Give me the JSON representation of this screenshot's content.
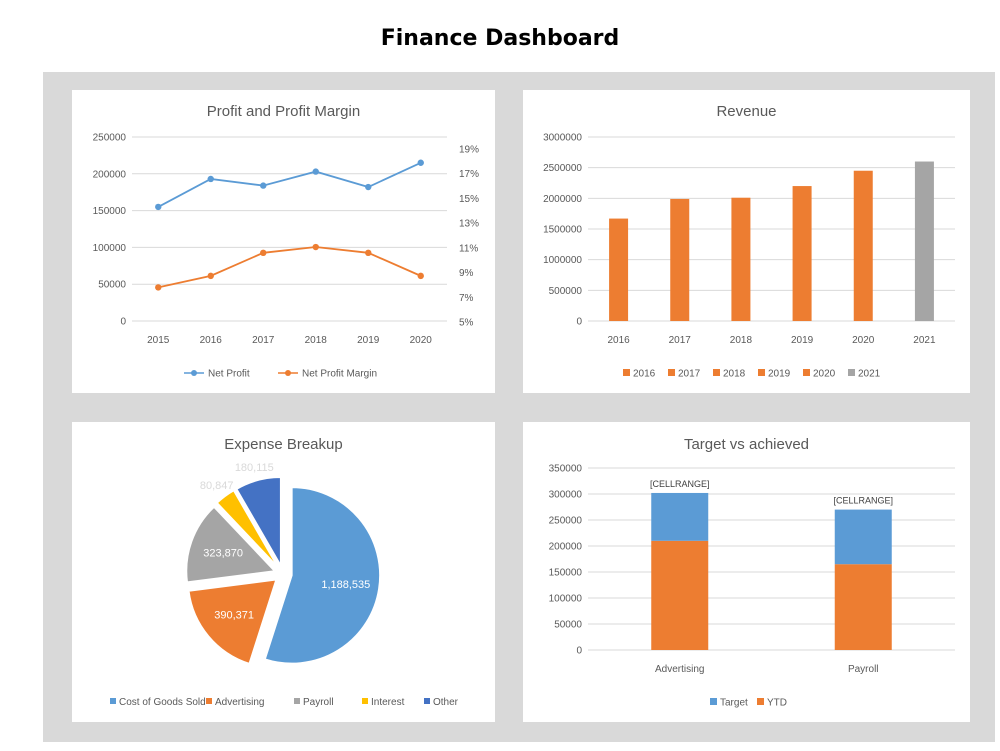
{
  "page": {
    "title": "Finance Dashboard"
  },
  "chart_data": [
    {
      "type": "line",
      "title": "Profit and Profit Margin",
      "categories": [
        "2015",
        "2016",
        "2017",
        "2018",
        "2019",
        "2020"
      ],
      "series": [
        {
          "name": "Net Profit",
          "axis": "left",
          "color": "#5b9bd5",
          "values": [
            155000,
            193000,
            184000,
            203000,
            182000,
            215000
          ]
        },
        {
          "name": "Net Profit Margin",
          "axis": "right",
          "color": "#ed7d31",
          "values": [
            0.08,
            0.09,
            0.11,
            0.115,
            0.11,
            0.09
          ]
        }
      ],
      "y_left": {
        "ylim": [
          0,
          250000
        ],
        "ticks": [
          "250000",
          "200000",
          "150000",
          "100000",
          "50000",
          "0"
        ]
      },
      "y_right": {
        "ylim": [
          0.05,
          0.2
        ],
        "ticks": [
          "19%",
          "17%",
          "15%",
          "13%",
          "11%",
          "9%",
          "7%",
          "5%"
        ]
      },
      "legend": "bottom",
      "grid": true
    },
    {
      "type": "bar",
      "title": "Revenue",
      "categories": [
        "2016",
        "2017",
        "2018",
        "2019",
        "2020",
        "2021"
      ],
      "values": [
        1670000,
        1990000,
        2010000,
        2200000,
        2450000,
        2600000
      ],
      "colors": [
        "#ed7d31",
        "#ed7d31",
        "#ed7d31",
        "#ed7d31",
        "#ed7d31",
        "#a5a5a5"
      ],
      "ylim": [
        0,
        3000000
      ],
      "ticks": [
        "3000000",
        "2500000",
        "2000000",
        "1500000",
        "1000000",
        "500000",
        "0"
      ],
      "legend_entries": [
        "2016",
        "2017",
        "2018",
        "2019",
        "2020",
        "2021"
      ],
      "legend": "bottom",
      "grid": true
    },
    {
      "type": "pie",
      "title": "Expense Breakup",
      "slices": [
        {
          "label": "Cost of Goods Sold",
          "value": 1188535,
          "value_label": "1,188,535",
          "color": "#5b9bd5"
        },
        {
          "label": "Advertising",
          "value": 390371,
          "value_label": "390,371",
          "color": "#ed7d31"
        },
        {
          "label": "Payroll",
          "value": 323870,
          "value_label": "323,870",
          "color": "#a5a5a5"
        },
        {
          "label": "Interest",
          "value": 80847,
          "value_label": "80,847",
          "color": "#ffc000"
        },
        {
          "label": "Other",
          "value": 180115,
          "value_label": "180,115",
          "color": "#4472c4"
        }
      ],
      "exploded": true,
      "legend": "bottom"
    },
    {
      "type": "bar",
      "stacked": true,
      "title": "Target vs achieved",
      "categories": [
        "Advertising",
        "Payroll"
      ],
      "series": [
        {
          "name": "YTD",
          "color": "#ed7d31",
          "values": [
            210000,
            165000
          ]
        },
        {
          "name": "Target",
          "color": "#5b9bd5",
          "values": [
            92000,
            105000
          ]
        }
      ],
      "totals": [
        302000,
        270000
      ],
      "data_labels": [
        "[CELLRANGE]",
        "[CELLRANGE]"
      ],
      "legend_entries": [
        "Target",
        "YTD"
      ],
      "ylim": [
        0,
        350000
      ],
      "ticks": [
        "350000",
        "300000",
        "250000",
        "200000",
        "150000",
        "100000",
        "50000",
        "0"
      ],
      "legend": "bottom",
      "grid": true
    }
  ]
}
